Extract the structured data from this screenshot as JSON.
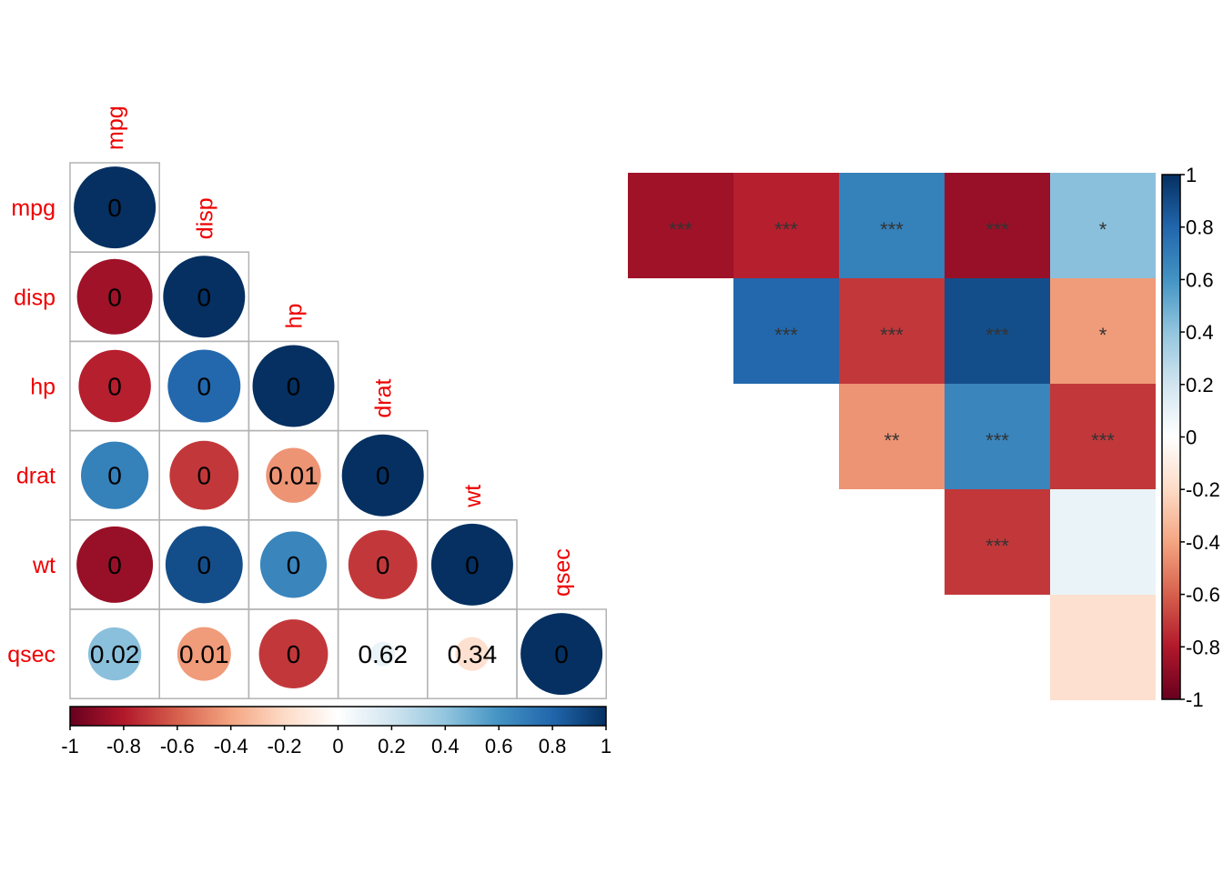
{
  "chart_data": [
    {
      "type": "heatmap",
      "subtype": "correlation-circles-lower-triangle",
      "variables": [
        "mpg",
        "disp",
        "hp",
        "drat",
        "wt",
        "qsec"
      ],
      "correlations": [
        [
          1,
          -0.85,
          -0.78,
          0.68,
          -0.87,
          0.42
        ],
        [
          -0.85,
          1,
          0.79,
          -0.71,
          0.89,
          -0.43
        ],
        [
          -0.78,
          0.79,
          1,
          -0.45,
          0.66,
          -0.71
        ],
        [
          0.68,
          -0.71,
          -0.45,
          1,
          -0.71,
          0.09
        ],
        [
          -0.87,
          0.89,
          0.66,
          -0.71,
          1,
          -0.17
        ],
        [
          0.42,
          -0.43,
          -0.71,
          0.09,
          -0.17,
          1
        ]
      ],
      "cell_labels": [
        [
          "0",
          "",
          "",
          "",
          "",
          ""
        ],
        [
          "0",
          "0",
          "",
          "",
          "",
          ""
        ],
        [
          "0",
          "0",
          "0",
          "",
          "",
          ""
        ],
        [
          "0",
          "0",
          "0.01",
          "0",
          "",
          ""
        ],
        [
          "0",
          "0",
          "0",
          "0",
          "0",
          ""
        ],
        [
          "0.02",
          "0.01",
          "0",
          "0.62",
          "0.34",
          "0"
        ]
      ],
      "label_color": "#ee0000",
      "colorbar": {
        "orientation": "horizontal",
        "range": [
          -1,
          1
        ],
        "ticks": [
          "-1",
          "-0.8",
          "-0.6",
          "-0.4",
          "-0.2",
          "0",
          "0.2",
          "0.4",
          "0.6",
          "0.8",
          "1"
        ]
      },
      "grid": true
    },
    {
      "type": "heatmap",
      "subtype": "upper-triangle-significance",
      "columns": 5,
      "rows": [
        {
          "cells": [
            {
              "value": -0.85,
              "stars": "***"
            },
            {
              "value": -0.78,
              "stars": "***"
            },
            {
              "value": 0.68,
              "stars": "***"
            },
            {
              "value": -0.87,
              "stars": "***"
            },
            {
              "value": 0.42,
              "stars": "*"
            }
          ]
        },
        {
          "cells": [
            {
              "value": 0.79,
              "stars": "***"
            },
            {
              "value": -0.71,
              "stars": "***"
            },
            {
              "value": 0.89,
              "stars": "***"
            },
            {
              "value": -0.43,
              "stars": "*"
            }
          ]
        },
        {
          "cells": [
            {
              "value": -0.45,
              "stars": "**"
            },
            {
              "value": 0.66,
              "stars": "***"
            },
            {
              "value": -0.71,
              "stars": "***"
            }
          ]
        },
        {
          "cells": [
            {
              "value": -0.71,
              "stars": "***"
            },
            {
              "value": 0.09,
              "stars": ""
            }
          ]
        },
        {
          "cells": [
            {
              "value": -0.17,
              "stars": ""
            }
          ]
        }
      ],
      "colorbar": {
        "orientation": "vertical",
        "range": [
          -1,
          1
        ],
        "ticks": [
          "1",
          "0.8",
          "0.6",
          "0.4",
          "0.2",
          "0",
          "-0.2",
          "-0.4",
          "-0.6",
          "-0.8",
          "-1"
        ]
      }
    }
  ],
  "palette": [
    "#67001F",
    "#B2182B",
    "#D6604D",
    "#F4A582",
    "#FDDBC7",
    "#FFFFFF",
    "#D1E5F0",
    "#92C5DE",
    "#4393C3",
    "#2166AC",
    "#053061"
  ]
}
